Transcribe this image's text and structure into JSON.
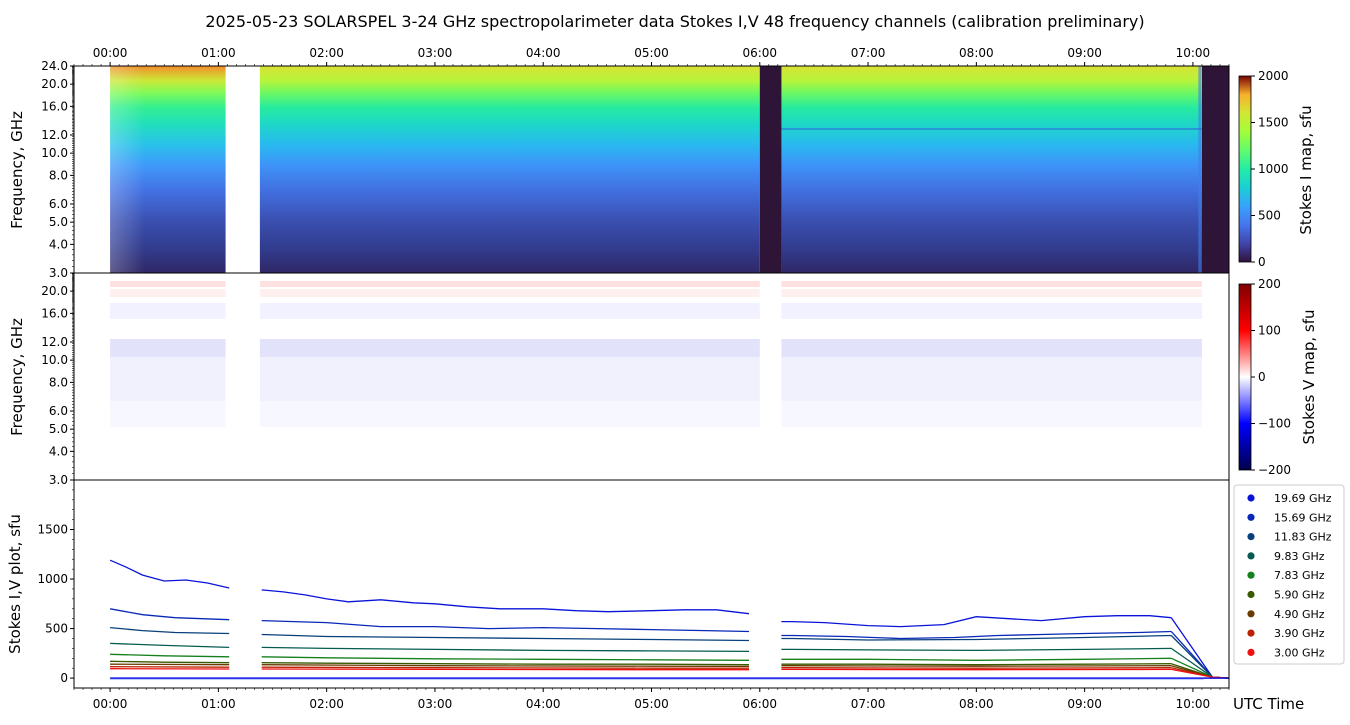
{
  "title": "2025-05-23  SOLARSPEL  3-24 GHz spectropolarimeter data   Stokes I,V   48 frequency channels   (calibration preliminary)",
  "chart_data": [
    {
      "type": "heatmap",
      "name": "stokes-i-map",
      "ylabel": "Frequency, GHz",
      "x_range": [
        "23:40",
        "10:20"
      ],
      "x_ticks": [
        "00:00",
        "01:00",
        "02:00",
        "03:00",
        "04:00",
        "05:00",
        "06:00",
        "07:00",
        "08:00",
        "09:00",
        "10:00"
      ],
      "y_range_ghz": [
        3.0,
        24.0
      ],
      "y_scale": "log",
      "y_ticks": [
        "3.0",
        "4.0",
        "5.0",
        "6.0",
        "8.0",
        "10.0",
        "12.0",
        "16.0",
        "20.0",
        "24.0"
      ],
      "colorbar": {
        "label": "Stokes I map, sfu",
        "ticks": [
          "0",
          "500",
          "1000",
          "1500",
          "2000"
        ],
        "range": [
          0,
          2000
        ],
        "colormap": "turbo"
      },
      "data_gaps": [
        [
          "23:40",
          "00:00"
        ],
        [
          "01:04",
          "01:23"
        ]
      ],
      "low_signal_intervals": [
        [
          "06:00",
          "06:12"
        ],
        [
          "10:05",
          "10:20"
        ]
      ]
    },
    {
      "type": "heatmap",
      "name": "stokes-v-map",
      "ylabel": "Frequency, GHz",
      "y_ticks": [
        "3.0",
        "4.0",
        "5.0",
        "6.0",
        "8.0",
        "10.0",
        "12.0",
        "16.0",
        "20.0"
      ],
      "colorbar": {
        "label": "Stokes V map, sfu",
        "ticks": [
          "200",
          "100",
          "0",
          "−100",
          "−200"
        ],
        "range": [
          -200,
          200
        ],
        "colormap": "seismic"
      }
    },
    {
      "type": "line",
      "name": "stokes-iv-plot",
      "ylabel": "Stokes I,V plot, sfu",
      "xlabel": "UTC Time",
      "ylim": [
        -100,
        2000
      ],
      "y_ticks": [
        "0",
        "500",
        "1000",
        "1500"
      ],
      "x_ticks": [
        "00:00",
        "01:00",
        "02:00",
        "03:00",
        "04:00",
        "05:00",
        "06:00",
        "07:00",
        "08:00",
        "09:00",
        "10:00"
      ],
      "legend": "right",
      "series": [
        {
          "name": "19.69 GHz",
          "color": "#0a14d8",
          "points": [
            [
              0,
              1190
            ],
            [
              0.15,
              1120
            ],
            [
              0.3,
              1040
            ],
            [
              0.5,
              980
            ],
            [
              0.7,
              990
            ],
            [
              0.9,
              960
            ],
            [
              1.1,
              910
            ],
            [
              1.4,
              890
            ],
            [
              1.6,
              870
            ],
            [
              1.8,
              840
            ],
            [
              2.0,
              800
            ],
            [
              2.2,
              770
            ],
            [
              2.5,
              790
            ],
            [
              2.8,
              760
            ],
            [
              3.0,
              750
            ],
            [
              3.3,
              720
            ],
            [
              3.6,
              700
            ],
            [
              4.0,
              700
            ],
            [
              4.3,
              680
            ],
            [
              4.6,
              670
            ],
            [
              5.0,
              680
            ],
            [
              5.3,
              690
            ],
            [
              5.6,
              690
            ],
            [
              5.9,
              650
            ],
            [
              6.3,
              570
            ],
            [
              6.6,
              560
            ],
            [
              7.0,
              530
            ],
            [
              7.3,
              520
            ],
            [
              7.7,
              540
            ],
            [
              8.0,
              620
            ],
            [
              8.3,
              600
            ],
            [
              8.6,
              580
            ],
            [
              9.0,
              620
            ],
            [
              9.3,
              630
            ],
            [
              9.6,
              630
            ],
            [
              9.8,
              610
            ]
          ]
        },
        {
          "name": "15.69 GHz",
          "color": "#0828b8",
          "points": [
            [
              0,
              700
            ],
            [
              0.3,
              640
            ],
            [
              0.6,
              610
            ],
            [
              1.1,
              590
            ],
            [
              1.4,
              580
            ],
            [
              2.0,
              560
            ],
            [
              2.5,
              520
            ],
            [
              3.0,
              520
            ],
            [
              3.5,
              500
            ],
            [
              4.0,
              510
            ],
            [
              4.5,
              500
            ],
            [
              5.0,
              490
            ],
            [
              5.5,
              480
            ],
            [
              5.9,
              470
            ],
            [
              6.3,
              430
            ],
            [
              6.8,
              420
            ],
            [
              7.3,
              400
            ],
            [
              7.8,
              410
            ],
            [
              8.2,
              430
            ],
            [
              8.6,
              440
            ],
            [
              9.0,
              450
            ],
            [
              9.5,
              460
            ],
            [
              9.8,
              470
            ]
          ]
        },
        {
          "name": "11.83 GHz",
          "color": "#08407c",
          "points": [
            [
              0,
              510
            ],
            [
              0.3,
              480
            ],
            [
              0.6,
              460
            ],
            [
              1.1,
              450
            ],
            [
              1.4,
              440
            ],
            [
              2.0,
              420
            ],
            [
              3.0,
              410
            ],
            [
              4.0,
              400
            ],
            [
              5.0,
              390
            ],
            [
              5.9,
              380
            ],
            [
              6.3,
              400
            ],
            [
              7.0,
              385
            ],
            [
              8.0,
              390
            ],
            [
              9.0,
              410
            ],
            [
              9.8,
              430
            ]
          ]
        },
        {
          "name": "9.83 GHz",
          "color": "#065c50",
          "points": [
            [
              0,
              350
            ],
            [
              0.5,
              330
            ],
            [
              1.1,
              310
            ],
            [
              1.4,
              310
            ],
            [
              2.0,
              300
            ],
            [
              3.0,
              290
            ],
            [
              4.0,
              280
            ],
            [
              5.0,
              275
            ],
            [
              5.9,
              270
            ],
            [
              6.3,
              290
            ],
            [
              7.0,
              285
            ],
            [
              8.0,
              280
            ],
            [
              9.0,
              290
            ],
            [
              9.8,
              300
            ]
          ]
        },
        {
          "name": "7.83 GHz",
          "color": "#14801e",
          "points": [
            [
              0,
              240
            ],
            [
              0.5,
              225
            ],
            [
              1.1,
              215
            ],
            [
              1.4,
              215
            ],
            [
              2.0,
              205
            ],
            [
              3.0,
              195
            ],
            [
              4.0,
              190
            ],
            [
              5.0,
              185
            ],
            [
              5.9,
              180
            ],
            [
              6.3,
              190
            ],
            [
              7.0,
              190
            ],
            [
              8.0,
              180
            ],
            [
              9.0,
              190
            ],
            [
              9.8,
              200
            ]
          ]
        },
        {
          "name": "5.90 GHz",
          "color": "#3a5a00",
          "points": [
            [
              0,
              170
            ],
            [
              0.5,
              160
            ],
            [
              1.1,
              155
            ],
            [
              1.4,
              155
            ],
            [
              2.0,
              150
            ],
            [
              3.0,
              145
            ],
            [
              4.0,
              140
            ],
            [
              5.0,
              140
            ],
            [
              5.9,
              135
            ],
            [
              6.3,
              140
            ],
            [
              7.0,
              140
            ],
            [
              8.0,
              135
            ],
            [
              9.0,
              140
            ],
            [
              9.8,
              145
            ]
          ]
        },
        {
          "name": "4.90 GHz",
          "color": "#6a3a00",
          "points": [
            [
              0,
              140
            ],
            [
              1.1,
              135
            ],
            [
              1.4,
              135
            ],
            [
              3.0,
              125
            ],
            [
              5.0,
              120
            ],
            [
              5.9,
              118
            ],
            [
              6.3,
              125
            ],
            [
              8.0,
              120
            ],
            [
              9.8,
              125
            ]
          ]
        },
        {
          "name": "3.90 GHz",
          "color": "#bb2200",
          "points": [
            [
              0,
              115
            ],
            [
              1.1,
              110
            ],
            [
              1.4,
              110
            ],
            [
              3.0,
              105
            ],
            [
              5.0,
              100
            ],
            [
              5.9,
              100
            ],
            [
              6.3,
              105
            ],
            [
              8.0,
              100
            ],
            [
              9.8,
              105
            ]
          ]
        },
        {
          "name": "3.00 GHz",
          "color": "#ee1111",
          "points": [
            [
              0,
              95
            ],
            [
              1.1,
              92
            ],
            [
              1.4,
              92
            ],
            [
              3.0,
              88
            ],
            [
              5.0,
              85
            ],
            [
              5.9,
              85
            ],
            [
              6.3,
              88
            ],
            [
              8.0,
              85
            ],
            [
              9.8,
              88
            ]
          ]
        }
      ]
    }
  ]
}
